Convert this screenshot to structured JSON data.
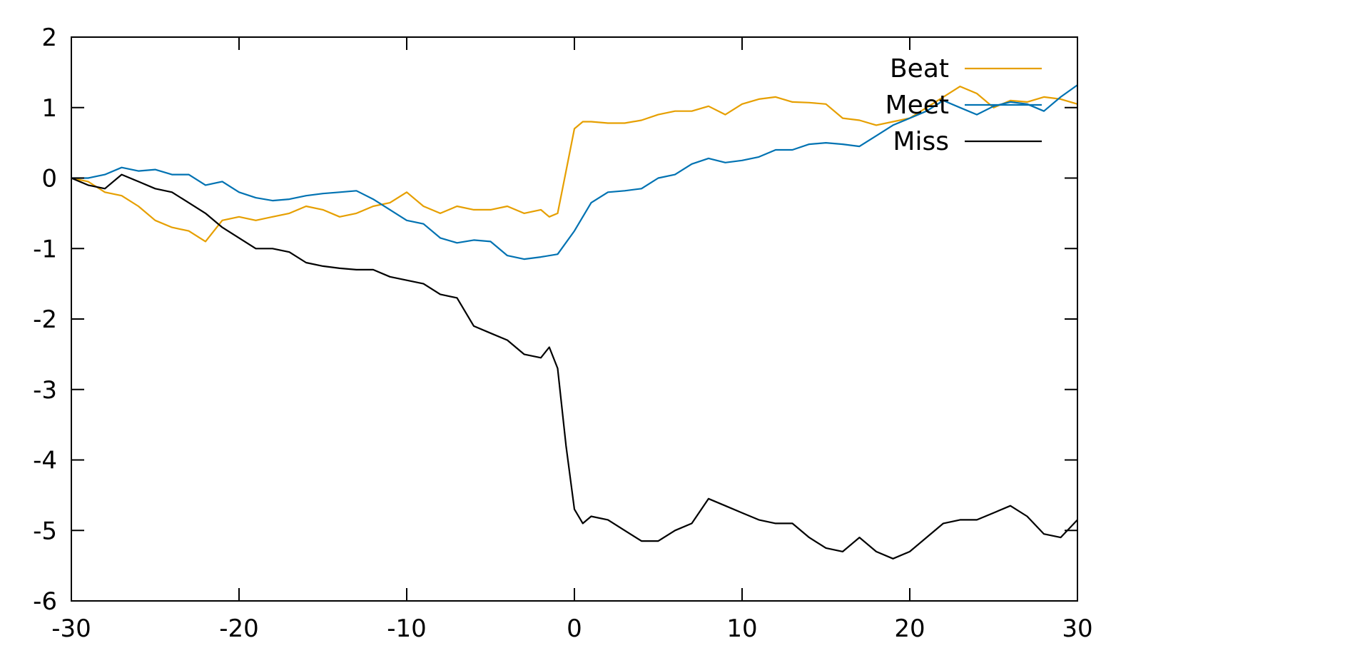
{
  "chart_data": {
    "type": "line",
    "title": "",
    "xlabel": "",
    "ylabel": "",
    "xlim": [
      -30,
      30
    ],
    "ylim": [
      -6,
      2
    ],
    "x_ticks": [
      -30,
      -20,
      -10,
      0,
      10,
      20,
      30
    ],
    "y_ticks": [
      -6,
      -5,
      -4,
      -3,
      -2,
      -1,
      0,
      1,
      2
    ],
    "grid": false,
    "legend_position": "top-right",
    "series": [
      {
        "name": "Beat",
        "color": "#e69f00",
        "x": [
          -30,
          -29,
          -28,
          -27,
          -26,
          -25,
          -24,
          -23,
          -22,
          -21,
          -20,
          -19,
          -18,
          -17,
          -16,
          -15,
          -14,
          -13,
          -12,
          -11,
          -10,
          -9,
          -8,
          -7,
          -6,
          -5,
          -4,
          -3,
          -2,
          -1.5,
          -1,
          -0.5,
          0,
          0.5,
          1,
          2,
          3,
          4,
          5,
          6,
          7,
          8,
          9,
          10,
          11,
          12,
          13,
          14,
          15,
          16,
          17,
          18,
          19,
          20,
          21,
          22,
          23,
          24,
          25,
          26,
          27,
          28,
          29,
          30
        ],
        "values": [
          0,
          -0.05,
          -0.2,
          -0.25,
          -0.4,
          -0.6,
          -0.7,
          -0.75,
          -0.9,
          -0.6,
          -0.55,
          -0.6,
          -0.55,
          -0.5,
          -0.4,
          -0.45,
          -0.55,
          -0.5,
          -0.4,
          -0.35,
          -0.2,
          -0.4,
          -0.5,
          -0.4,
          -0.45,
          -0.45,
          -0.4,
          -0.5,
          -0.45,
          -0.55,
          -0.5,
          0.1,
          0.7,
          0.8,
          0.8,
          0.78,
          0.78,
          0.82,
          0.9,
          0.95,
          0.95,
          1.02,
          0.9,
          1.05,
          1.12,
          1.15,
          1.08,
          1.07,
          1.05,
          0.85,
          0.82,
          0.75,
          0.8,
          0.85,
          1.0,
          1.15,
          1.3,
          1.2,
          1.0,
          1.1,
          1.08,
          1.15,
          1.12,
          1.05
        ]
      },
      {
        "name": "Meet",
        "color": "#0072b2",
        "x": [
          -30,
          -29,
          -28,
          -27,
          -26,
          -25,
          -24,
          -23,
          -22,
          -21,
          -20,
          -19,
          -18,
          -17,
          -16,
          -15,
          -14,
          -13,
          -12,
          -11,
          -10,
          -9,
          -8,
          -7,
          -6,
          -5,
          -4,
          -3,
          -2,
          -1,
          0,
          1,
          2,
          3,
          4,
          5,
          6,
          7,
          8,
          9,
          10,
          11,
          12,
          13,
          14,
          15,
          16,
          17,
          18,
          19,
          20,
          21,
          22,
          23,
          24,
          25,
          26,
          27,
          28,
          29,
          30
        ],
        "values": [
          0,
          0,
          0.05,
          0.15,
          0.1,
          0.12,
          0.05,
          0.05,
          -0.1,
          -0.05,
          -0.2,
          -0.28,
          -0.32,
          -0.3,
          -0.25,
          -0.22,
          -0.2,
          -0.18,
          -0.3,
          -0.45,
          -0.6,
          -0.65,
          -0.85,
          -0.92,
          -0.88,
          -0.9,
          -1.1,
          -1.15,
          -1.12,
          -1.08,
          -0.75,
          -0.35,
          -0.2,
          -0.18,
          -0.15,
          0.0,
          0.05,
          0.2,
          0.28,
          0.22,
          0.25,
          0.3,
          0.4,
          0.4,
          0.48,
          0.5,
          0.48,
          0.45,
          0.6,
          0.75,
          0.85,
          0.95,
          1.1,
          1.0,
          0.9,
          1.02,
          1.08,
          1.05,
          0.95,
          1.15,
          1.32
        ]
      },
      {
        "name": "Miss",
        "color": "#000000",
        "x": [
          -30,
          -29,
          -28,
          -27,
          -26,
          -25,
          -24,
          -23,
          -22,
          -21,
          -20,
          -19,
          -18,
          -17,
          -16,
          -15,
          -14,
          -13,
          -12,
          -11,
          -10,
          -9,
          -8,
          -7,
          -6,
          -5,
          -4,
          -3,
          -2,
          -1.5,
          -1,
          -0.5,
          0,
          0.5,
          1,
          2,
          3,
          4,
          5,
          6,
          7,
          8,
          9,
          10,
          11,
          12,
          13,
          14,
          15,
          16,
          17,
          18,
          19,
          20,
          21,
          22,
          23,
          24,
          25,
          26,
          27,
          28,
          29,
          30
        ],
        "values": [
          0,
          -0.1,
          -0.15,
          0.05,
          -0.05,
          -0.15,
          -0.2,
          -0.35,
          -0.5,
          -0.7,
          -0.85,
          -1.0,
          -1.0,
          -1.05,
          -1.2,
          -1.25,
          -1.28,
          -1.3,
          -1.3,
          -1.4,
          -1.45,
          -1.5,
          -1.65,
          -1.7,
          -2.1,
          -2.2,
          -2.3,
          -2.5,
          -2.55,
          -2.4,
          -2.7,
          -3.8,
          -4.7,
          -4.9,
          -4.8,
          -4.85,
          -5.0,
          -5.15,
          -5.15,
          -5.0,
          -4.9,
          -4.55,
          -4.65,
          -4.75,
          -4.85,
          -4.9,
          -4.9,
          -5.1,
          -5.25,
          -5.3,
          -5.1,
          -5.3,
          -5.4,
          -5.3,
          -5.1,
          -4.9,
          -4.85,
          -4.85,
          -4.75,
          -4.65,
          -4.8,
          -5.05,
          -5.1,
          -4.85
        ]
      }
    ]
  }
}
